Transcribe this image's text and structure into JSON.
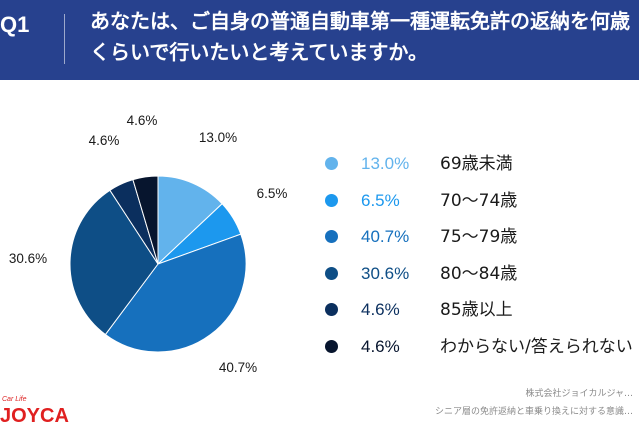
{
  "header": {
    "q_label": "Q1",
    "question": "あなたは、ご自身の普通自動車第一種運転免許の返納を何歳くらいで行いたいと考えていますか。"
  },
  "chart_data": {
    "type": "pie",
    "title": "",
    "start_angle_deg": 0,
    "direction": "clockwise",
    "categories": [
      "69歳未満",
      "70〜74歳",
      "75〜79歳",
      "80〜84歳",
      "85歳以上",
      "わからない/答えられない"
    ],
    "values": [
      13.0,
      6.5,
      40.7,
      30.6,
      4.6,
      4.6
    ],
    "value_labels": [
      "13.0%",
      "6.5%",
      "40.7%",
      "30.6%",
      "4.6%",
      "4.6%"
    ],
    "colors": [
      "#62b3ec",
      "#1c98ee",
      "#1670bd",
      "#0e4e86",
      "#0b2f5e",
      "#07152e"
    ],
    "legend_placement": "right"
  },
  "footer": {
    "company": "株式会社ジョイカルジャ…",
    "survey": "シニア層の免許返納と車乗り換えに対する意識…"
  },
  "logo": {
    "tagline": "Car Life",
    "wordmark": "JOYCAL"
  }
}
